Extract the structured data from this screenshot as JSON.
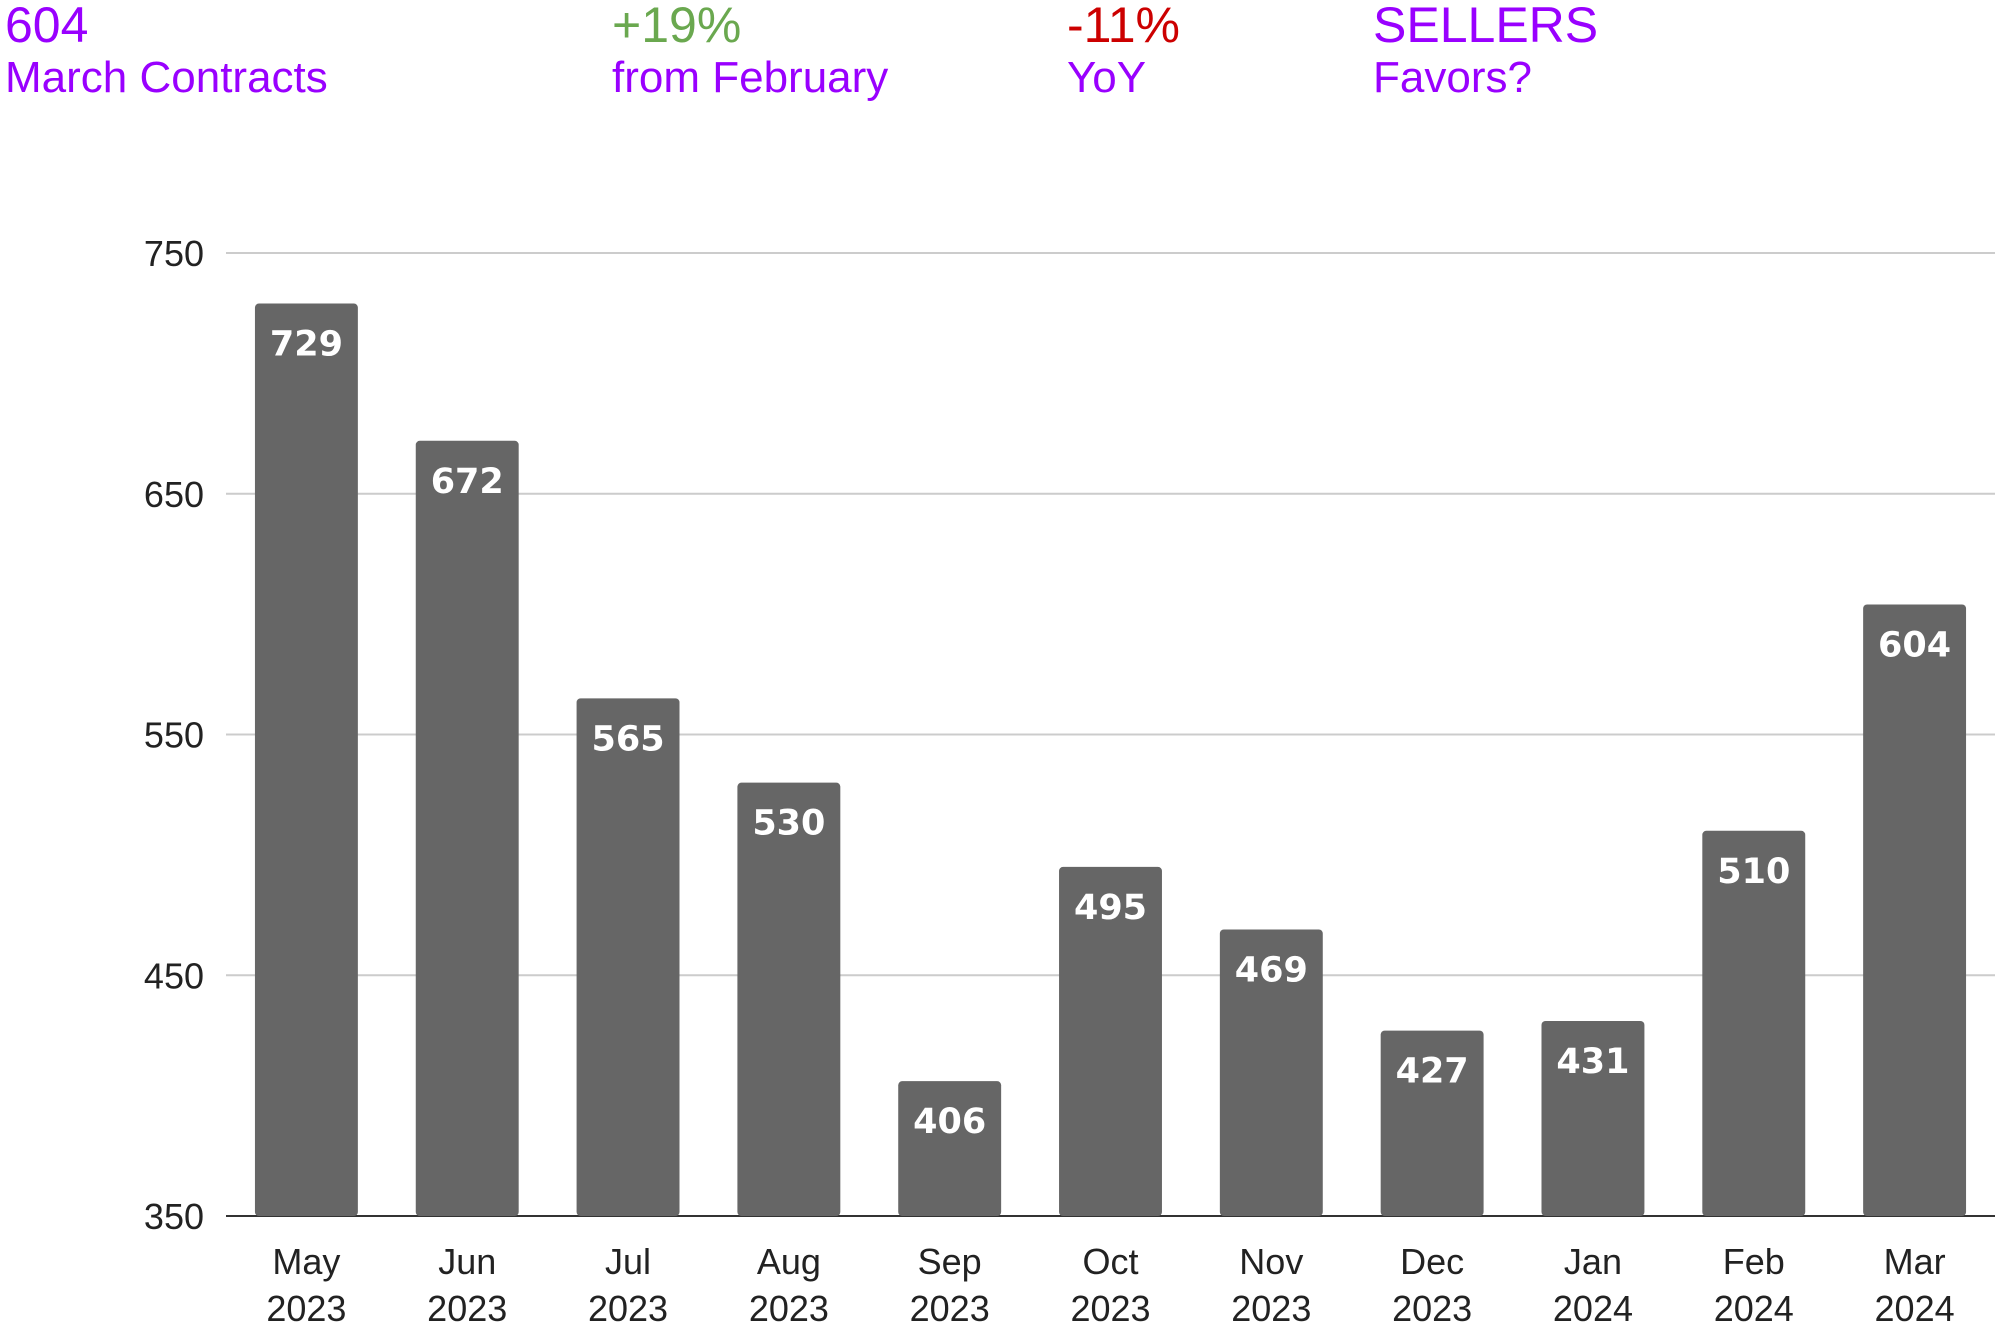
{
  "stats": [
    {
      "big": "604",
      "small": "March Contracts",
      "big_color": "#9900ff",
      "small_color": "#9900ff"
    },
    {
      "big": "+19%",
      "small": "from February",
      "big_color": "#6aa84f",
      "small_color": "#9900ff"
    },
    {
      "big": "-11%",
      "small": "YoY",
      "big_color": "#cc0000",
      "small_color": "#9900ff"
    },
    {
      "big": "SELLERS",
      "small": "Favors?",
      "big_color": "#9900ff",
      "small_color": "#9900ff"
    }
  ],
  "chart_data": {
    "type": "bar",
    "categories": [
      [
        "May",
        "2023"
      ],
      [
        "Jun",
        "2023"
      ],
      [
        "Jul",
        "2023"
      ],
      [
        "Aug",
        "2023"
      ],
      [
        "Sep",
        "2023"
      ],
      [
        "Oct",
        "2023"
      ],
      [
        "Nov",
        "2023"
      ],
      [
        "Dec",
        "2023"
      ],
      [
        "Jan",
        "2024"
      ],
      [
        "Feb",
        "2024"
      ],
      [
        "Mar",
        "2024"
      ]
    ],
    "values": [
      729,
      672,
      565,
      530,
      406,
      495,
      469,
      427,
      431,
      510,
      604
    ],
    "ylim": [
      350,
      750
    ],
    "yticks": [
      350,
      450,
      550,
      650,
      750
    ],
    "grid": true,
    "bar_color": "#666666",
    "label_color": "#ffffff"
  }
}
